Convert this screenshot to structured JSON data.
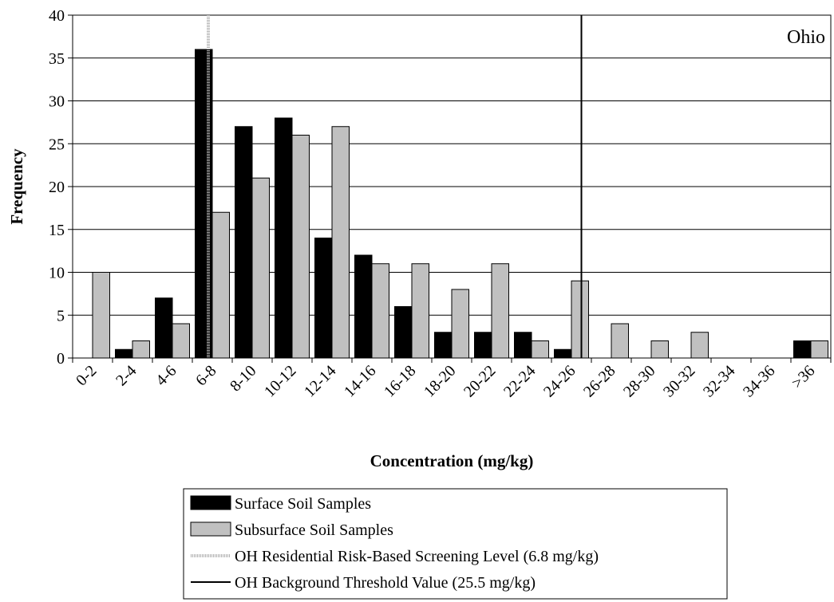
{
  "chart_data": {
    "type": "bar",
    "categories": [
      "0-2",
      "2-4",
      "4-6",
      "6-8",
      "8-10",
      "10-12",
      "12-14",
      "14-16",
      "16-18",
      "18-20",
      "20-22",
      "22-24",
      "24-26",
      "26-28",
      "28-30",
      "30-32",
      "32-34",
      "34-36",
      ">36"
    ],
    "series": [
      {
        "name": "Surface Soil Samples",
        "color": "#000000",
        "values": [
          0,
          1,
          7,
          36,
          27,
          28,
          14,
          12,
          6,
          3,
          3,
          3,
          1,
          0,
          0,
          0,
          0,
          0,
          2
        ]
      },
      {
        "name": "Subsurface Soil Samples",
        "color": "#c0c0c0",
        "values": [
          10,
          2,
          4,
          17,
          21,
          26,
          27,
          11,
          11,
          8,
          11,
          2,
          9,
          4,
          2,
          3,
          0,
          0,
          2
        ]
      }
    ],
    "reference_lines": [
      {
        "name": "OH Residential Risk-Based Screening Level (6.8 mg/kg)",
        "x_value": 6.8,
        "color": "#b0b0b0",
        "style": "dotted"
      },
      {
        "name": "OH Background Threshold Value (25.5 mg/kg)",
        "x_value": 25.5,
        "color": "#000000",
        "style": "solid"
      }
    ],
    "bin_width": 2,
    "xlabel": "Concentration (mg/kg)",
    "ylabel": "Frequency",
    "ylim": [
      0,
      40
    ],
    "yticks": [
      "0",
      "5",
      "10",
      "15",
      "20",
      "25",
      "30",
      "35",
      "40"
    ],
    "annotation": "Ohio",
    "grid": "horizontal",
    "legend_placement": "bottom-center"
  }
}
